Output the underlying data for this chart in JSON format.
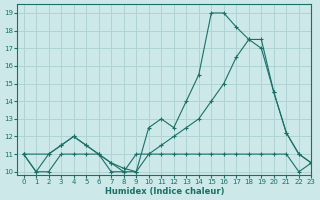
{
  "xlabel": "Humidex (Indice chaleur)",
  "xlim": [
    -0.5,
    23
  ],
  "ylim": [
    9.8,
    19.5
  ],
  "xticks": [
    0,
    1,
    2,
    3,
    4,
    5,
    6,
    7,
    8,
    9,
    10,
    11,
    12,
    13,
    14,
    15,
    16,
    17,
    18,
    19,
    20,
    21,
    22,
    23
  ],
  "yticks": [
    10,
    11,
    12,
    13,
    14,
    15,
    16,
    17,
    18,
    19
  ],
  "bg_color": "#cce8e8",
  "line_color": "#1a7068",
  "grid_color": "#b0d4d4",
  "line1_x": [
    0,
    1,
    2,
    3,
    4,
    5,
    6,
    7,
    8,
    9,
    10,
    11,
    12,
    13,
    14,
    15,
    16,
    17,
    18,
    19,
    20,
    21,
    22,
    23
  ],
  "line1_y": [
    11,
    10,
    10,
    11,
    11,
    11,
    11,
    10,
    10,
    11,
    11,
    11,
    11,
    11,
    11,
    11,
    11,
    11,
    11,
    11,
    11,
    11,
    10,
    10.5
  ],
  "line2_x": [
    0,
    1,
    2,
    3,
    4,
    5,
    6,
    7,
    8,
    9,
    10,
    11,
    12,
    13,
    14,
    15,
    16,
    17,
    18,
    19,
    20,
    21,
    22,
    23
  ],
  "line2_y": [
    11,
    10,
    11,
    11.5,
    12,
    11.5,
    11,
    10.5,
    10,
    10,
    11,
    11.5,
    12,
    12.5,
    13,
    14,
    15,
    16.5,
    17.5,
    17,
    14.5,
    12.2,
    11,
    10.5
  ],
  "line3_x": [
    0,
    2,
    3,
    4,
    5,
    6,
    7,
    8,
    9,
    10,
    11,
    12,
    13,
    14,
    15,
    16,
    17,
    18,
    19,
    20,
    21,
    22,
    23
  ],
  "line3_y": [
    11,
    11,
    11.5,
    12,
    11.5,
    11,
    10.5,
    10.2,
    10,
    12.5,
    13,
    12.5,
    14,
    15.5,
    19,
    19,
    18.2,
    17.5,
    17.5,
    14.5,
    12.2,
    11,
    10.5
  ]
}
